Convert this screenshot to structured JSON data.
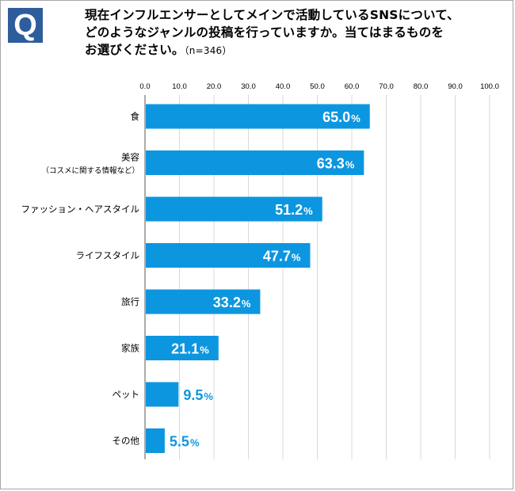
{
  "question": {
    "badge": "Q",
    "lines": [
      "現在インフルエンサーとしてメインで活動しているSNSについて、",
      "どのようなジャンルの投稿を行っていますか。当てはまるものを",
      "お選びください。"
    ],
    "sample_note": "（n=346）"
  },
  "chart_data": {
    "type": "bar",
    "orientation": "horizontal",
    "title": "現在インフルエンサーとしてメインで活動しているSNSについて、どのようなジャンルの投稿を行っていますか。当てはまるものをお選びください。",
    "xlabel": "",
    "ylabel": "",
    "xlim": [
      0,
      100
    ],
    "ticks": [
      "0.0",
      "10.0",
      "20.0",
      "30.0",
      "40.0",
      "50.0",
      "60.0",
      "70.0",
      "80.0",
      "90.0",
      "100.0"
    ],
    "tick_values": [
      0,
      10,
      20,
      30,
      40,
      50,
      60,
      70,
      80,
      90,
      100
    ],
    "grid": true,
    "unit": "%",
    "bar_color": "#0d96e0",
    "categories": [
      {
        "label": "食",
        "sub": ""
      },
      {
        "label": "美容",
        "sub": "（コスメに関する情報など）"
      },
      {
        "label": "ファッション・ヘアスタイル",
        "sub": ""
      },
      {
        "label": "ライフスタイル",
        "sub": ""
      },
      {
        "label": "旅行",
        "sub": ""
      },
      {
        "label": "家族",
        "sub": ""
      },
      {
        "label": "ペット",
        "sub": ""
      },
      {
        "label": "その他",
        "sub": ""
      }
    ],
    "values": [
      65.0,
      63.3,
      51.2,
      47.7,
      33.2,
      21.1,
      9.5,
      5.5
    ],
    "value_labels": [
      "65.0",
      "63.3",
      "51.2",
      "47.7",
      "33.2",
      "21.1",
      "9.5",
      "5.5"
    ]
  }
}
